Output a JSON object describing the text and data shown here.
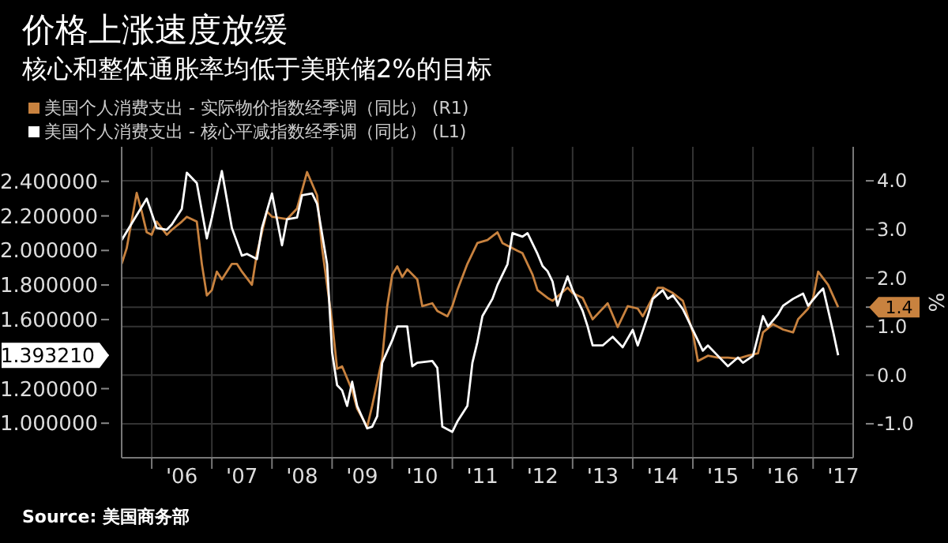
{
  "chart_data": {
    "type": "line",
    "title": "价格上涨速度放缓",
    "subtitle": "核心和整体通胀率均低于美联储2%的目标",
    "y2label": "%",
    "annotations": [
      "Source: 美国商务部"
    ],
    "legend": "top left",
    "grid": true,
    "marker": "none",
    "xlim": [
      "2005-07",
      "2017-09"
    ],
    "xticks": [
      {
        "value": "2006-01",
        "label": null
      },
      {
        "value": "2006-07",
        "label": "'06"
      },
      {
        "value": "2007-01",
        "label": null
      },
      {
        "value": "2007-07",
        "label": "'07"
      },
      {
        "value": "2008-01",
        "label": null
      },
      {
        "value": "2008-07",
        "label": "'08"
      },
      {
        "value": "2009-01",
        "label": null
      },
      {
        "value": "2009-07",
        "label": "'09"
      },
      {
        "value": "2010-01",
        "label": null
      },
      {
        "value": "2010-07",
        "label": "'10"
      },
      {
        "value": "2011-01",
        "label": null
      },
      {
        "value": "2011-07",
        "label": "'11"
      },
      {
        "value": "2012-01",
        "label": null
      },
      {
        "value": "2012-07",
        "label": "'12"
      },
      {
        "value": "2013-01",
        "label": null
      },
      {
        "value": "2013-07",
        "label": "'13"
      },
      {
        "value": "2014-01",
        "label": null
      },
      {
        "value": "2014-07",
        "label": "'14"
      },
      {
        "value": "2015-01",
        "label": null
      },
      {
        "value": "2015-07",
        "label": "'15"
      },
      {
        "value": "2016-01",
        "label": null
      },
      {
        "value": "2016-07",
        "label": "'16"
      },
      {
        "value": "2017-01",
        "label": null
      },
      {
        "value": "2017-07",
        "label": "'17"
      }
    ],
    "ylim": [
      0.8,
      2.6
    ],
    "yticks": [
      {
        "value": 1.0,
        "label": "1.000000"
      },
      {
        "value": 1.2,
        "label": "1.200000"
      },
      {
        "value": 1.39321,
        "label": "1.393210"
      },
      {
        "value": 1.6,
        "label": "1.600000"
      },
      {
        "value": 1.8,
        "label": "1.800000"
      },
      {
        "value": 2.0,
        "label": "2.000000"
      },
      {
        "value": 2.2,
        "label": "2.200000"
      },
      {
        "value": 2.4,
        "label": "2.400000"
      }
    ],
    "y2lim": [
      -1.7,
      4.7
    ],
    "y2ticks": [
      {
        "value": -1.0,
        "label": "-1.0"
      },
      {
        "value": 0.0,
        "label": "0.0"
      },
      {
        "value": 1.0,
        "label": "1.0"
      },
      {
        "value": 1.4,
        "label": "1.4"
      },
      {
        "value": 2.0,
        "label": "2.0"
      },
      {
        "value": 3.0,
        "label": "3.0"
      },
      {
        "value": 4.0,
        "label": "4.0"
      }
    ],
    "series": [
      {
        "name": "美国个人消费支出 - 实际物价指数经季调（同比） (R1)",
        "color": "#c8823f",
        "axis": "y2",
        "x": [
          "2005-07",
          "2005-08",
          "2005-10",
          "2005-11",
          "2005-12",
          "2006-01",
          "2006-02",
          "2006-04",
          "2006-05",
          "2006-07",
          "2006-08",
          "2006-10",
          "2006-11",
          "2006-12",
          "2007-01",
          "2007-02",
          "2007-03",
          "2007-05",
          "2007-06",
          "2007-07",
          "2007-09",
          "2007-10",
          "2007-12",
          "2008-01",
          "2008-04",
          "2008-06",
          "2008-08",
          "2008-10",
          "2008-11",
          "2009-01",
          "2009-02",
          "2009-03",
          "2009-05",
          "2009-06",
          "2009-08",
          "2009-09",
          "2009-11",
          "2009-12",
          "2010-01",
          "2010-02",
          "2010-03",
          "2010-04",
          "2010-06",
          "2010-07",
          "2010-09",
          "2010-10",
          "2010-12",
          "2011-01",
          "2011-02",
          "2011-04",
          "2011-06",
          "2011-08",
          "2011-10",
          "2011-11",
          "2012-02",
          "2012-03",
          "2012-05",
          "2012-06",
          "2012-08",
          "2012-09",
          "2012-12",
          "2013-01",
          "2013-03",
          "2013-05",
          "2013-08",
          "2013-10",
          "2013-12",
          "2014-02",
          "2014-03",
          "2014-06",
          "2014-07",
          "2014-09",
          "2014-11",
          "2015-01",
          "2015-02",
          "2015-04",
          "2015-06",
          "2015-08",
          "2015-10",
          "2015-12",
          "2016-02",
          "2016-03",
          "2016-05",
          "2016-07",
          "2016-09",
          "2016-10",
          "2016-12",
          "2017-01",
          "2017-02",
          "2017-04",
          "2017-06"
        ],
        "values": [
          2.29,
          2.61,
          3.75,
          3.37,
          2.94,
          2.89,
          3.16,
          2.89,
          2.99,
          3.16,
          3.26,
          3.16,
          2.29,
          1.64,
          1.75,
          2.13,
          1.97,
          2.29,
          2.29,
          2.13,
          1.86,
          2.51,
          3.37,
          3.26,
          3.21,
          3.43,
          4.18,
          3.7,
          2.61,
          1.1,
          0.13,
          0.18,
          -0.31,
          -0.69,
          -1.06,
          -0.63,
          0.34,
          1.42,
          2.07,
          2.24,
          2.02,
          2.18,
          1.97,
          1.42,
          1.48,
          1.32,
          1.21,
          1.42,
          1.75,
          2.29,
          2.72,
          2.78,
          2.94,
          2.72,
          2.56,
          2.51,
          2.07,
          1.75,
          1.59,
          1.53,
          1.8,
          1.69,
          1.59,
          1.15,
          1.48,
          0.99,
          1.42,
          1.37,
          1.21,
          1.8,
          1.8,
          1.69,
          1.53,
          0.88,
          0.29,
          0.4,
          0.36,
          0.36,
          0.34,
          0.4,
          0.45,
          0.88,
          1.05,
          0.94,
          0.88,
          1.15,
          1.37,
          1.59,
          2.13,
          1.86,
          1.4
        ]
      },
      {
        "name": "美国个人消费支出 - 核心平减指数经季调（同比） (L1)",
        "color": "#ffffff",
        "axis": "y",
        "x": [
          "2005-07",
          "2005-12",
          "2006-02",
          "2006-04",
          "2006-05",
          "2006-07",
          "2006-08",
          "2006-10",
          "2006-12",
          "2007-01",
          "2007-03",
          "2007-05",
          "2007-07",
          "2007-08",
          "2007-10",
          "2007-11",
          "2008-01",
          "2008-03",
          "2008-04",
          "2008-06",
          "2008-07",
          "2008-09",
          "2008-10",
          "2008-12",
          "2009-01",
          "2009-02",
          "2009-03",
          "2009-04",
          "2009-05",
          "2009-06",
          "2009-08",
          "2009-09",
          "2009-10",
          "2009-11",
          "2010-01",
          "2010-02",
          "2010-04",
          "2010-05",
          "2010-06",
          "2010-09",
          "2010-10",
          "2010-11",
          "2011-01",
          "2011-02",
          "2011-04",
          "2011-05",
          "2011-06",
          "2011-07",
          "2011-09",
          "2011-10",
          "2011-12",
          "2012-01",
          "2012-03",
          "2012-04",
          "2012-06",
          "2012-07",
          "2012-08",
          "2012-09",
          "2012-10",
          "2012-11",
          "2012-12",
          "2013-01",
          "2013-03",
          "2013-04",
          "2013-05",
          "2013-07",
          "2013-09",
          "2013-11",
          "2014-01",
          "2014-02",
          "2014-04",
          "2014-05",
          "2014-07",
          "2014-08",
          "2014-09",
          "2014-11",
          "2015-01",
          "2015-03",
          "2015-04",
          "2015-06",
          "2015-08",
          "2015-10",
          "2015-11",
          "2016-01",
          "2016-03",
          "2016-04",
          "2016-06",
          "2016-07",
          "2016-09",
          "2016-11",
          "2016-12",
          "2017-02",
          "2017-03",
          "2017-05",
          "2017-06"
        ],
        "values": [
          2.06,
          2.3,
          2.13,
          2.12,
          2.15,
          2.24,
          2.45,
          2.39,
          2.07,
          2.19,
          2.46,
          2.13,
          1.97,
          1.98,
          1.95,
          2.13,
          2.33,
          2.03,
          2.18,
          2.19,
          2.32,
          2.33,
          2.27,
          1.92,
          1.41,
          1.22,
          1.19,
          1.1,
          1.24,
          1.1,
          0.97,
          0.98,
          1.04,
          1.35,
          1.48,
          1.56,
          1.56,
          1.33,
          1.35,
          1.36,
          1.32,
          0.98,
          0.95,
          1.01,
          1.1,
          1.35,
          1.47,
          1.62,
          1.72,
          1.8,
          1.92,
          2.1,
          2.08,
          2.1,
          1.98,
          1.91,
          1.88,
          1.82,
          1.68,
          1.77,
          1.85,
          1.77,
          1.65,
          1.56,
          1.45,
          1.45,
          1.5,
          1.44,
          1.54,
          1.45,
          1.62,
          1.72,
          1.77,
          1.72,
          1.74,
          1.66,
          1.54,
          1.42,
          1.45,
          1.39,
          1.33,
          1.38,
          1.35,
          1.39,
          1.62,
          1.56,
          1.63,
          1.68,
          1.72,
          1.75,
          1.68,
          1.75,
          1.78,
          1.53,
          1.39321
        ]
      }
    ]
  }
}
